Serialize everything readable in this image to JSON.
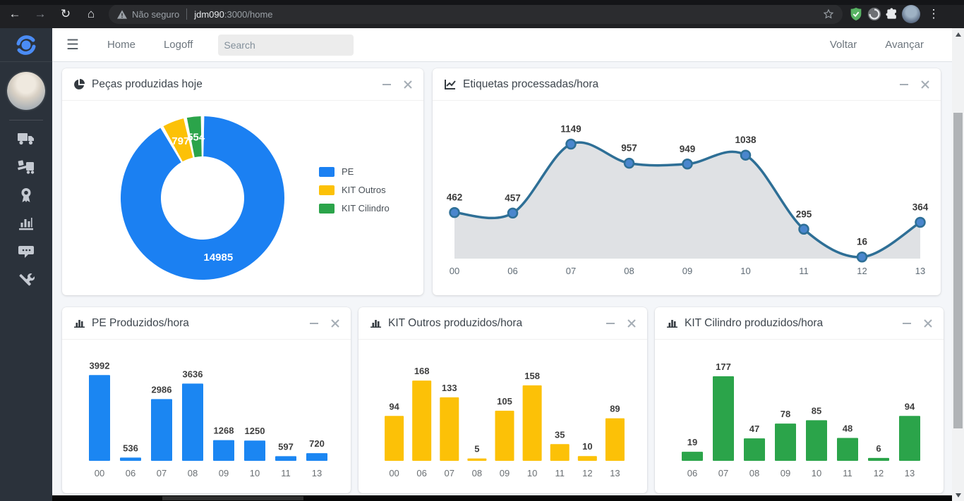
{
  "browser": {
    "security_label": "Não seguro",
    "url_host": "jdm090",
    "url_path": ":3000/home"
  },
  "navbar": {
    "menu": [
      {
        "label": "Home"
      },
      {
        "label": "Logoff"
      }
    ],
    "search_placeholder": "Search",
    "right_menu": [
      {
        "label": "Voltar"
      },
      {
        "label": "Avançar"
      }
    ]
  },
  "sidebar": {
    "icons": [
      "truck-icon",
      "truck-loading-icon",
      "award-icon",
      "bar-chart-icon",
      "comments-icon",
      "tools-icon"
    ]
  },
  "chart_data": [
    {
      "id": "pecas-produzidas-donut",
      "type": "pie",
      "donut": true,
      "title": "Peças produzidas hoje",
      "labels": [
        "PE",
        "KIT Outros",
        "KIT Cilindro"
      ],
      "values": [
        14985,
        797,
        554
      ],
      "colors": [
        "#1b80f2",
        "#fcc107",
        "#2ba44a"
      ],
      "legend_position": "right"
    },
    {
      "id": "etiquetas-area",
      "type": "area",
      "title": "Etiquetas processadas/hora",
      "categories": [
        "00",
        "06",
        "07",
        "08",
        "09",
        "10",
        "11",
        "12",
        "13"
      ],
      "values": [
        462,
        457,
        1149,
        957,
        949,
        1038,
        295,
        16,
        364
      ],
      "line_color": "#2e6f96",
      "point_color": "#4a86cd",
      "fill_color": "rgba(170,177,184,0.38)",
      "ylim": [
        0,
        1400
      ],
      "grid": false
    },
    {
      "id": "pe-bar",
      "type": "bar",
      "title": "PE Produzidos/hora",
      "categories": [
        "00",
        "06",
        "07",
        "08",
        "09",
        "10",
        "11",
        "13"
      ],
      "values": [
        3992,
        536,
        2986,
        3636,
        1268,
        1250,
        597,
        720
      ],
      "color": "#1b86f2",
      "ylim": [
        400,
        4000
      ],
      "grid": false
    },
    {
      "id": "kit-outros-bar",
      "type": "bar",
      "title": "KIT Outros produzidos/hora",
      "categories": [
        "00",
        "06",
        "07",
        "08",
        "09",
        "10",
        "11",
        "12",
        "13"
      ],
      "values": [
        94,
        168,
        133,
        5,
        105,
        158,
        35,
        10,
        89
      ],
      "color": "#fcc107",
      "ylim": [
        0,
        180
      ],
      "grid": false
    },
    {
      "id": "kit-cilindro-bar",
      "type": "bar",
      "title": "KIT Cilindro produzidos/hora",
      "categories": [
        "06",
        "07",
        "08",
        "09",
        "10",
        "11",
        "12",
        "13"
      ],
      "values": [
        19,
        177,
        47,
        78,
        85,
        48,
        6,
        94
      ],
      "color": "#2ba44a",
      "ylim": [
        0,
        180
      ],
      "grid": false
    }
  ]
}
